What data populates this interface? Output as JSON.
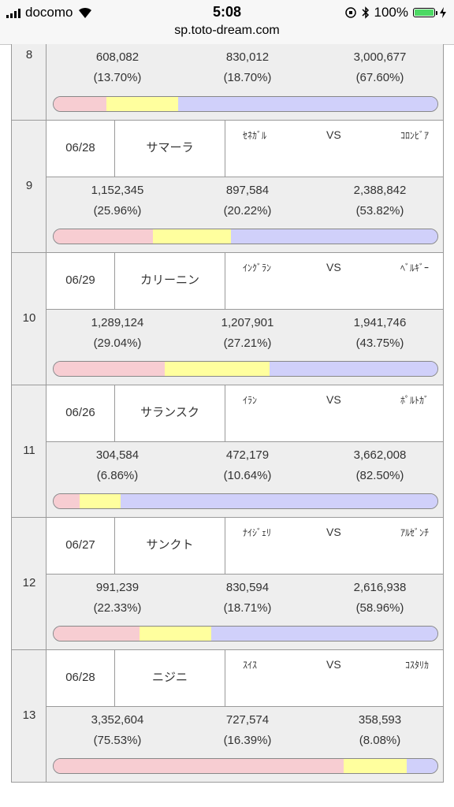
{
  "status": {
    "carrier": "docomo",
    "time": "5:08",
    "battery": "100%"
  },
  "browser": {
    "url": "sp.toto-dream.com"
  },
  "colors": {
    "home_win": "#f7cdd2",
    "draw": "#ffff9e",
    "away_win": "#d0d0fa"
  },
  "matches": [
    {
      "no": "8",
      "date": "",
      "venue": "",
      "home": "",
      "away": "",
      "vs": "",
      "votes": [
        "608,082",
        "830,012",
        "3,000,677"
      ],
      "pcts": [
        "(13.70%)",
        "(18.70%)",
        "(67.60%)"
      ],
      "shares": [
        13.7,
        18.7,
        67.6
      ]
    },
    {
      "no": "9",
      "date": "06/28",
      "venue": "サマーラ",
      "home": "ｾﾈｶﾞﾙ",
      "vs": "VS",
      "away": "ｺﾛﾝﾋﾞｱ",
      "votes": [
        "1,152,345",
        "897,584",
        "2,388,842"
      ],
      "pcts": [
        "(25.96%)",
        "(20.22%)",
        "(53.82%)"
      ],
      "shares": [
        25.96,
        20.22,
        53.82
      ]
    },
    {
      "no": "10",
      "date": "06/29",
      "venue": "カリーニン",
      "home": "ｲﾝｸﾞﾗﾝ",
      "vs": "VS",
      "away": "ﾍﾞﾙｷﾞｰ",
      "votes": [
        "1,289,124",
        "1,207,901",
        "1,941,746"
      ],
      "pcts": [
        "(29.04%)",
        "(27.21%)",
        "(43.75%)"
      ],
      "shares": [
        29.04,
        27.21,
        43.75
      ]
    },
    {
      "no": "11",
      "date": "06/26",
      "venue": "サランスク",
      "home": "ｲﾗﾝ",
      "vs": "VS",
      "away": "ﾎﾟﾙﾄｶﾞ",
      "votes": [
        "304,584",
        "472,179",
        "3,662,008"
      ],
      "pcts": [
        "(6.86%)",
        "(10.64%)",
        "(82.50%)"
      ],
      "shares": [
        6.86,
        10.64,
        82.5
      ]
    },
    {
      "no": "12",
      "date": "06/27",
      "venue": "サンクト",
      "home": "ﾅｲｼﾞｪﾘ",
      "vs": "VS",
      "away": "ｱﾙｾﾞﾝﾁ",
      "votes": [
        "991,239",
        "830,594",
        "2,616,938"
      ],
      "pcts": [
        "(22.33%)",
        "(18.71%)",
        "(58.96%)"
      ],
      "shares": [
        22.33,
        18.71,
        58.96
      ]
    },
    {
      "no": "13",
      "date": "06/28",
      "venue": "ニジニ",
      "home": "ｽｲｽ",
      "vs": "VS",
      "away": "ｺｽﾀﾘｶ",
      "votes": [
        "3,352,604",
        "727,574",
        "358,593"
      ],
      "pcts": [
        "(75.53%)",
        "(16.39%)",
        "(8.08%)"
      ],
      "shares": [
        75.53,
        16.39,
        8.08
      ]
    }
  ]
}
